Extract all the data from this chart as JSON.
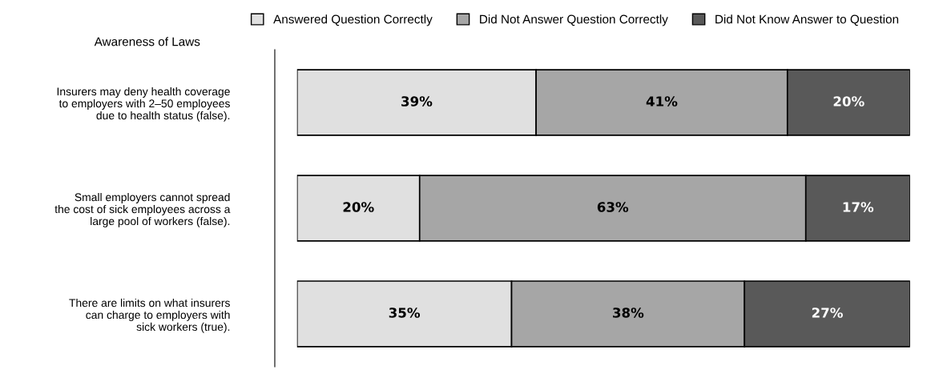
{
  "chart_data": {
    "type": "bar",
    "orientation": "horizontal",
    "stacked": true,
    "legend": "top",
    "grid": false,
    "annotations": [
      "Awareness of Laws"
    ],
    "categories": [
      "Insurers may deny health coverage\nto employers with 2–50 employees\ndue to health status (false).",
      "Small employers cannot spread\nthe cost of sick employees across a\nlarge pool of workers (false).",
      "There are limits on what insurers\ncan charge to employers with\nsick workers (true)."
    ],
    "series": [
      {
        "name": "Answered Question Correctly",
        "color": "#e0e0e0",
        "values": [
          39,
          20,
          35
        ],
        "value_labels": [
          "39%",
          "20%",
          "35%"
        ]
      },
      {
        "name": "Did Not Answer Question Correctly",
        "color": "#a6a6a6",
        "values": [
          41,
          63,
          38
        ],
        "value_labels": [
          "41%",
          "63%",
          "38%"
        ]
      },
      {
        "name": "Did Not Know Answer to Question",
        "color": "#595959",
        "values": [
          20,
          17,
          27
        ],
        "value_labels": [
          "20%",
          "17%",
          "27%"
        ]
      }
    ]
  }
}
